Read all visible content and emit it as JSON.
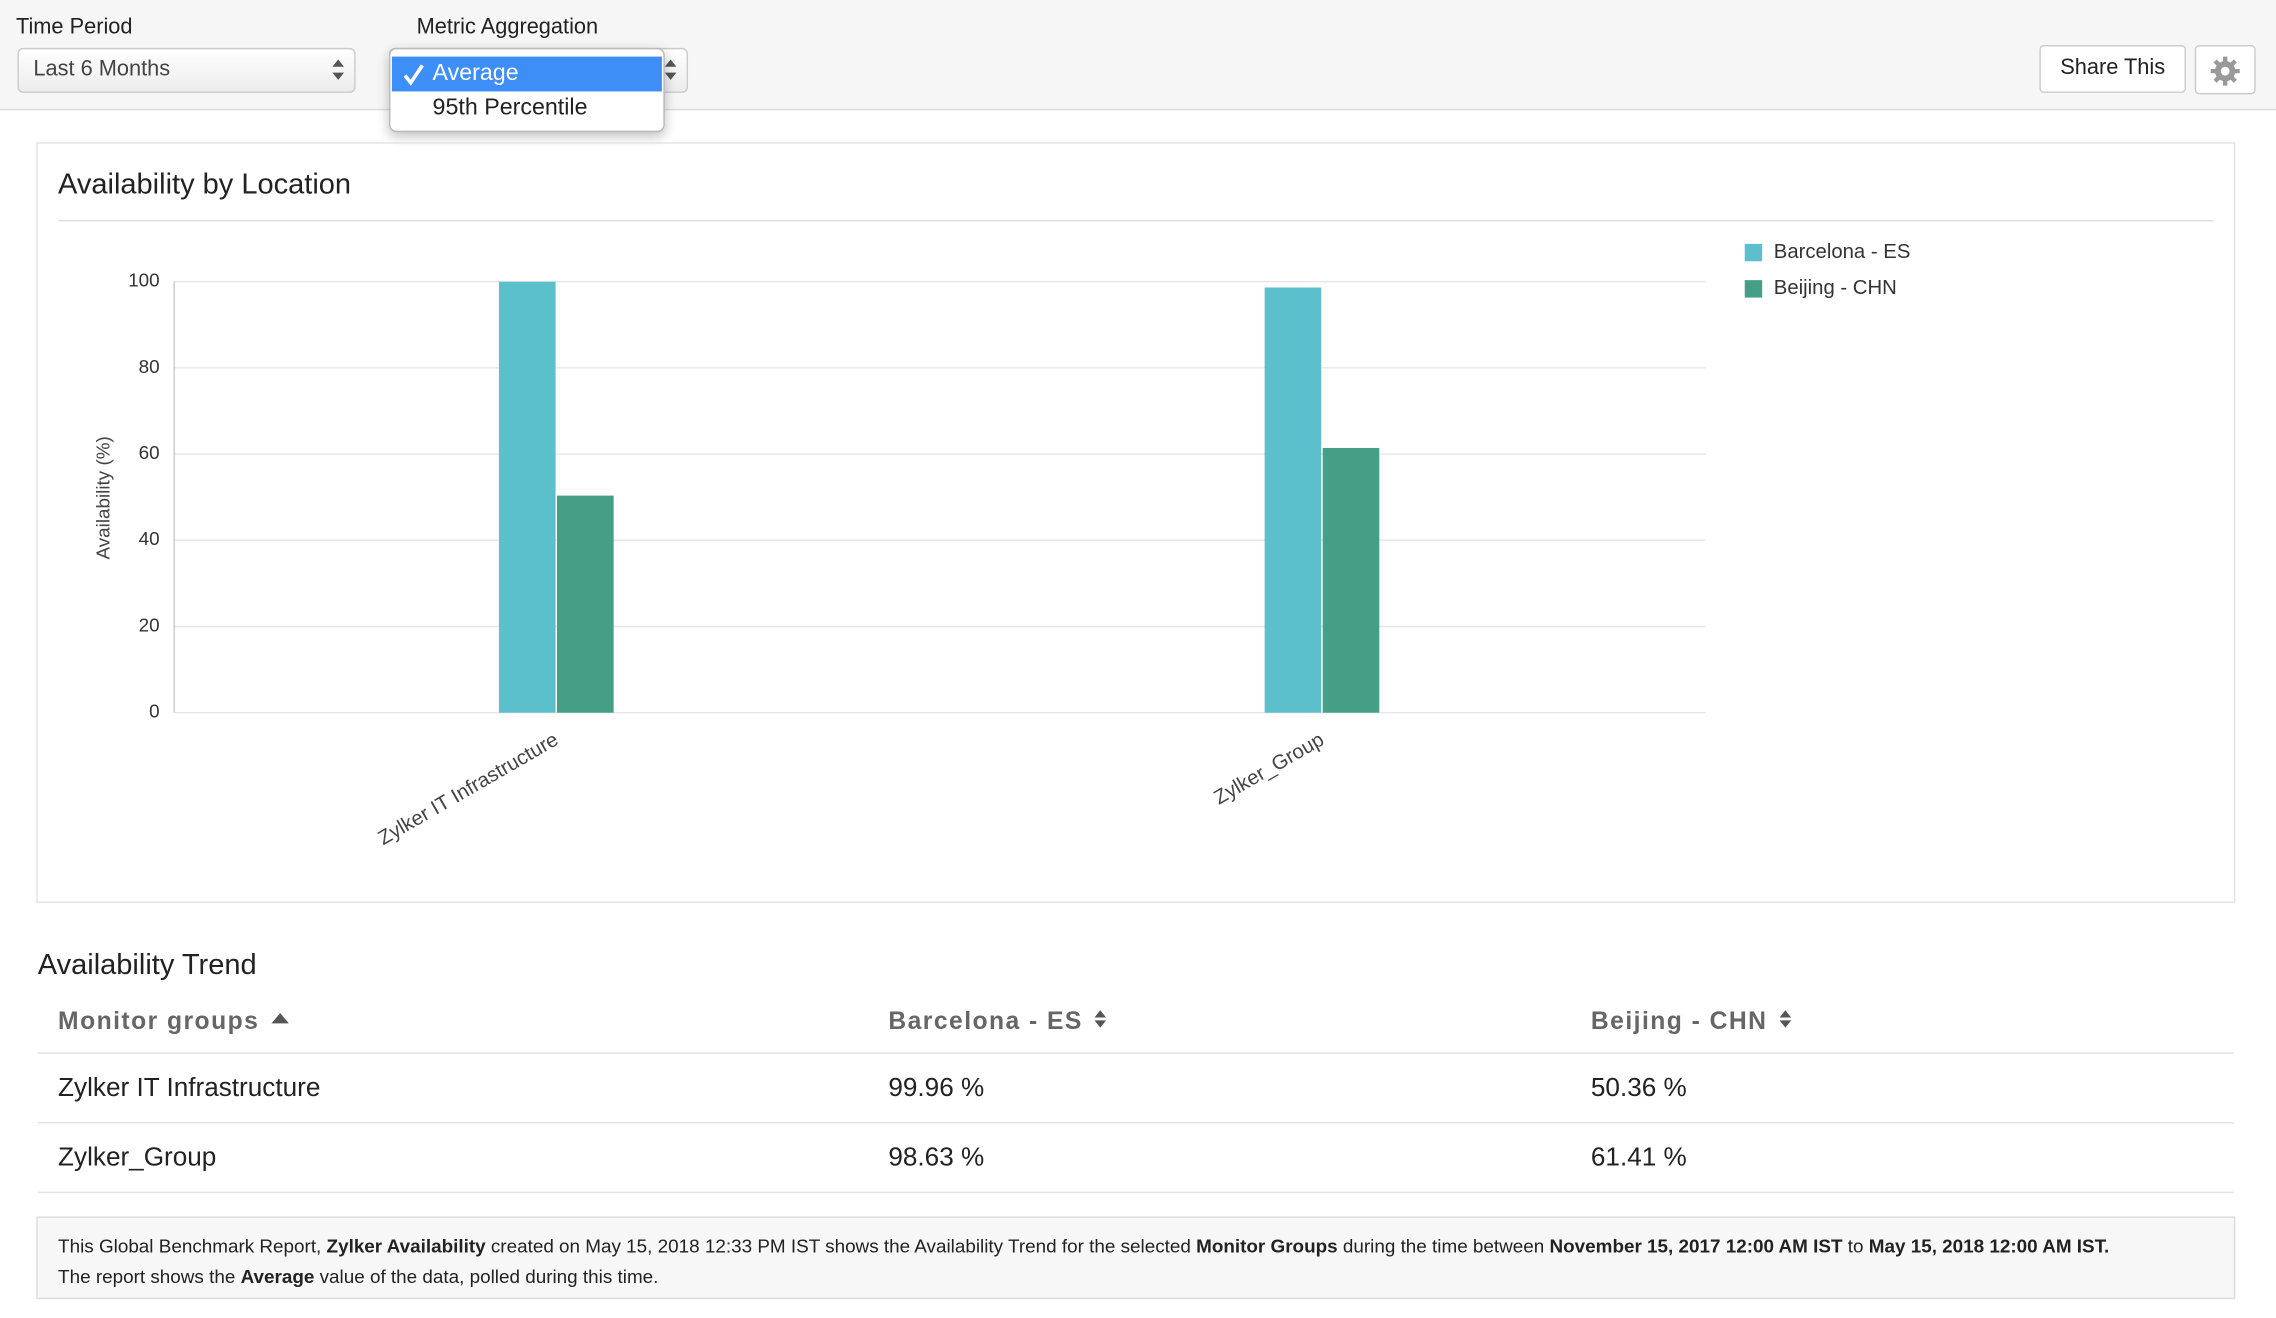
{
  "controls": {
    "time_period_label": "Time Period",
    "time_period_value": "Last 6 Months",
    "metric_label": "Metric Aggregation",
    "metric_options": [
      "Average",
      "95th Percentile"
    ],
    "share_button": "Share This"
  },
  "chart_data": {
    "type": "bar",
    "title": "Availability by Location",
    "y_label": "Availability (%)",
    "categories": [
      "Zylker IT Infrastructure",
      "Zylker_Group"
    ],
    "series": [
      {
        "name": "Barcelona - ES",
        "color": "#5bbfcc",
        "values": [
          99.96,
          98.63
        ]
      },
      {
        "name": "Beijing - CHN",
        "color": "#459e86",
        "values": [
          50.36,
          61.41
        ]
      }
    ],
    "ylim": [
      0,
      100
    ],
    "yticks": [
      0,
      20,
      40,
      60,
      80,
      100
    ],
    "grid": true,
    "legend": "top-right"
  },
  "table": {
    "title": "Availability Trend",
    "headers": [
      "Monitor groups",
      "Barcelona - ES",
      "Beijing - CHN"
    ],
    "rows": [
      [
        "Zylker IT Infrastructure",
        "99.96 %",
        "50.36 %"
      ],
      [
        "Zylker_Group",
        "98.63 %",
        "61.41 %"
      ]
    ]
  },
  "footer": {
    "lines": [
      [
        {
          "text": "This Global Benchmark Report, ",
          "bold": false
        },
        {
          "text": "Zylker Availability",
          "bold": true
        },
        {
          "text": " created on May 15, 2018 12:33 PM IST shows the Availability Trend for the selected ",
          "bold": false
        },
        {
          "text": "Monitor Groups",
          "bold": true
        },
        {
          "text": " during the time between ",
          "bold": false
        },
        {
          "text": "November 15, 2017 12:00 AM IST",
          "bold": true
        },
        {
          "text": " to ",
          "bold": false
        },
        {
          "text": "May 15, 2018 12:00 AM IST.",
          "bold": true
        }
      ],
      [
        {
          "text": "The report shows the ",
          "bold": false
        },
        {
          "text": "Average",
          "bold": true
        },
        {
          "text": " value of the data, polled during this time.",
          "bold": false
        }
      ]
    ]
  }
}
